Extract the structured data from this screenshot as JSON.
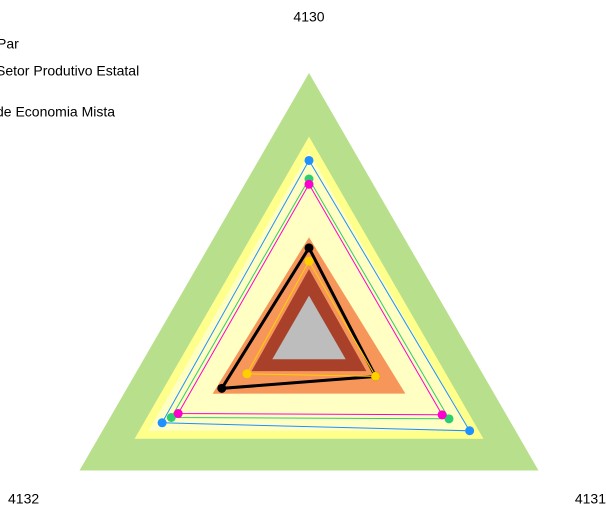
{
  "chart_data": {
    "type": "radar",
    "categories": [
      "4130",
      "4131",
      "4132"
    ],
    "rlim": [
      0,
      100
    ],
    "legend": [
      "sPar",
      "Setor Produtivo Estatal",
      "de Economia Mista"
    ],
    "bands": [
      {
        "color": "#b8e08c",
        "values": [
          100,
          100,
          100
        ]
      },
      {
        "color": "#ffff8c",
        "values": [
          76,
          76,
          76
        ]
      },
      {
        "color": "#ffffc4",
        "values": [
          70,
          70,
          70
        ]
      },
      {
        "color": "#f7965a",
        "values": [
          38,
          42,
          42
        ]
      },
      {
        "color": "#a8402a",
        "values": [
          26,
          25,
          25
        ]
      },
      {
        "color": "#bdbdbd",
        "values": [
          16,
          16,
          16
        ]
      }
    ],
    "series": [
      {
        "color": "#1e90ff",
        "values": [
          67,
          70,
          64
        ]
      },
      {
        "color": "#2ecc71",
        "values": [
          60,
          61,
          60
        ]
      },
      {
        "color": "#ff00cc",
        "values": [
          58,
          58,
          57
        ]
      },
      {
        "color": "#000000",
        "values": [
          34,
          29,
          38
        ]
      },
      {
        "color": "#ffd000",
        "values": [
          29,
          29,
          27
        ]
      }
    ]
  }
}
